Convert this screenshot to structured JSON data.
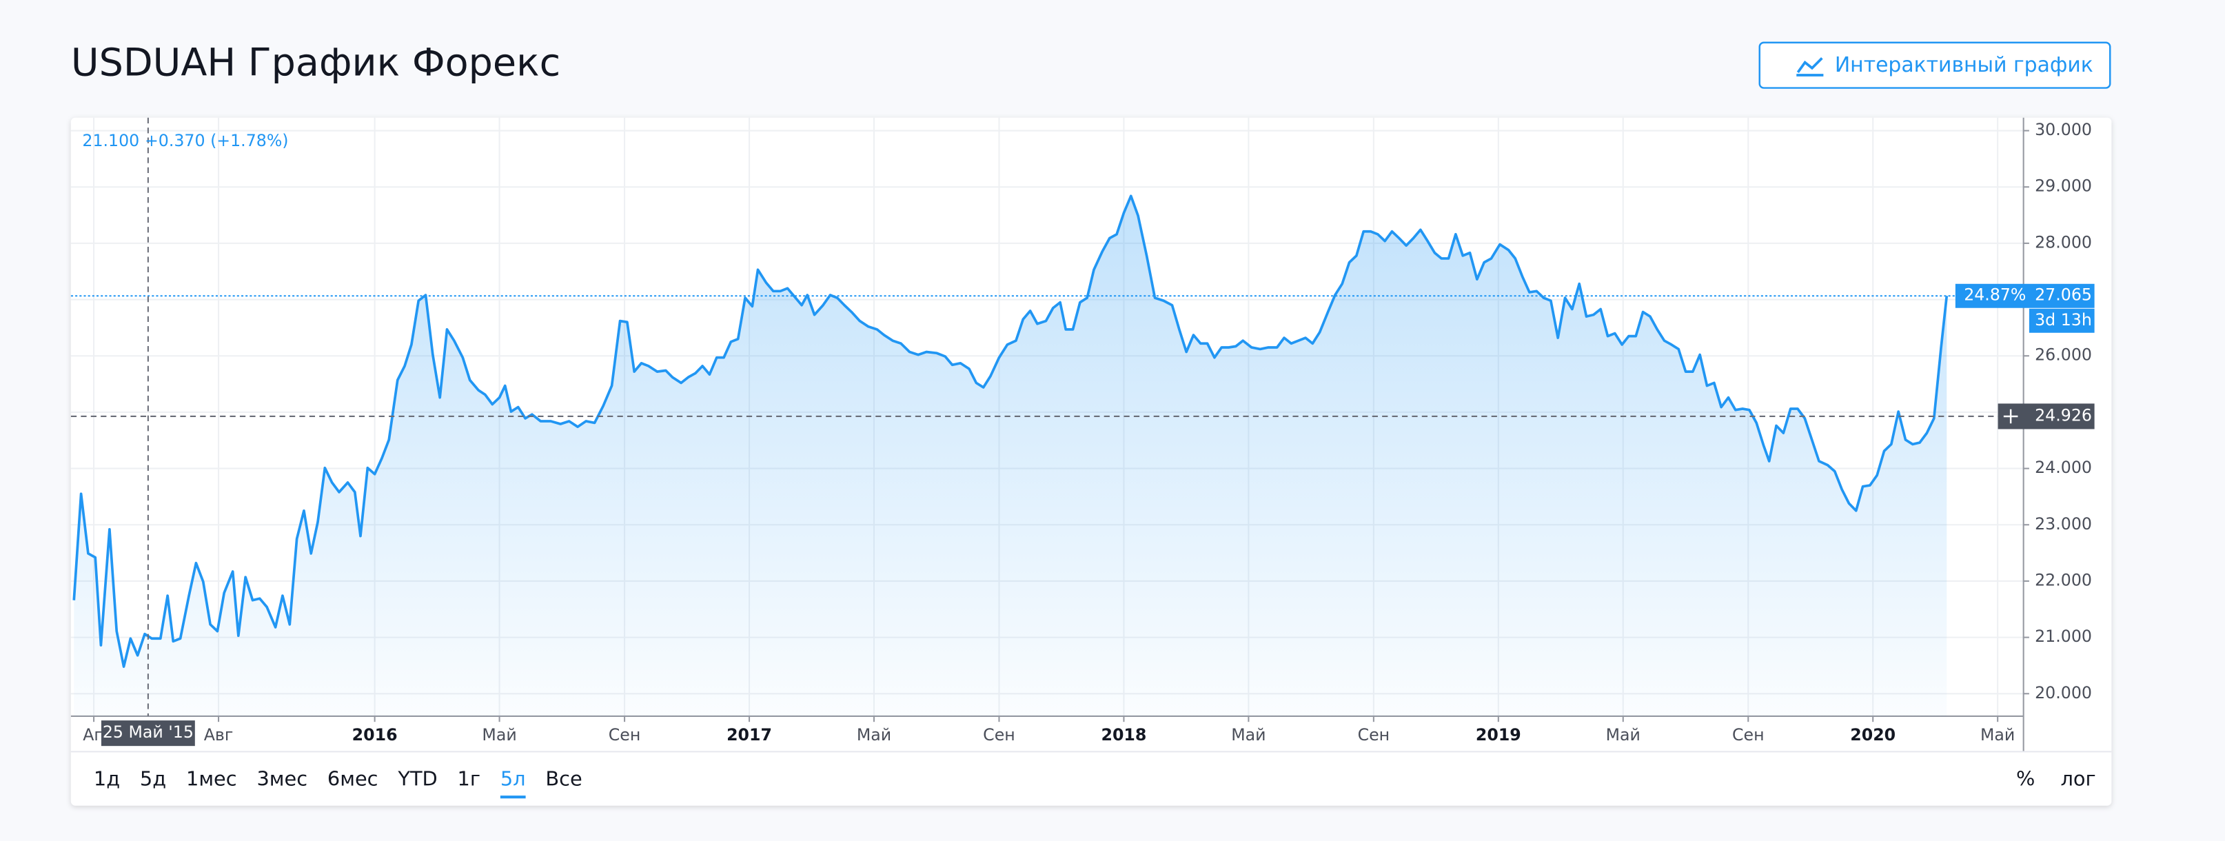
{
  "header": {
    "title": "USDUAH График Форекс",
    "button": "Интерактивный график"
  },
  "chart_data": {
    "type": "line",
    "color": "#2196f3",
    "grid": true,
    "x": [
      2015.197,
      2015.216,
      2015.235,
      2015.254,
      2015.269,
      2015.292,
      2015.311,
      2015.33,
      2015.348,
      2015.367,
      2015.386,
      2015.405,
      2015.428,
      2015.447,
      2015.462,
      2015.481,
      2015.504,
      2015.523,
      2015.542,
      2015.561,
      2015.58,
      2015.598,
      2015.621,
      2015.636,
      2015.655,
      2015.674,
      2015.693,
      2015.712,
      2015.735,
      2015.754,
      2015.773,
      2015.792,
      2015.811,
      2015.83,
      2015.848,
      2015.867,
      2015.886,
      2015.905,
      2015.928,
      2015.947,
      2015.962,
      2015.981,
      2016.0,
      2016.019,
      2016.038,
      2016.061,
      2016.08,
      2016.098,
      2016.117,
      2016.136,
      2016.155,
      2016.174,
      2016.193,
      2016.212,
      2016.235,
      2016.254,
      2016.277,
      2016.295,
      2016.314,
      2016.333,
      2016.348,
      2016.364,
      2016.383,
      2016.402,
      2016.42,
      2016.443,
      2016.47,
      2016.496,
      2016.519,
      2016.542,
      2016.564,
      2016.587,
      2016.61,
      2016.633,
      2016.655,
      2016.674,
      2016.693,
      2016.712,
      2016.731,
      2016.754,
      2016.777,
      2016.795,
      2016.818,
      2016.837,
      2016.856,
      2016.875,
      2016.894,
      2016.913,
      2016.932,
      2016.951,
      2016.97,
      2016.989,
      2017.008,
      2017.023,
      2017.045,
      2017.064,
      2017.083,
      2017.102,
      2017.121,
      2017.14,
      2017.155,
      2017.174,
      2017.197,
      2017.216,
      2017.235,
      2017.254,
      2017.273,
      2017.295,
      2017.318,
      2017.341,
      2017.36,
      2017.383,
      2017.405,
      2017.428,
      2017.451,
      2017.473,
      2017.5,
      2017.523,
      2017.542,
      2017.564,
      2017.587,
      2017.606,
      2017.625,
      2017.644,
      2017.667,
      2017.689,
      2017.712,
      2017.731,
      2017.75,
      2017.769,
      2017.792,
      2017.811,
      2017.83,
      2017.845,
      2017.864,
      2017.883,
      2017.902,
      2017.92,
      2017.943,
      2017.962,
      2017.981,
      2018.0,
      2018.019,
      2018.038,
      2018.061,
      2018.083,
      2018.106,
      2018.129,
      2018.148,
      2018.167,
      2018.186,
      2018.205,
      2018.223,
      2018.242,
      2018.261,
      2018.28,
      2018.299,
      2018.318,
      2018.341,
      2018.364,
      2018.386,
      2018.409,
      2018.428,
      2018.447,
      2018.466,
      2018.485,
      2018.504,
      2018.523,
      2018.545,
      2018.564,
      2018.583,
      2018.602,
      2018.621,
      2018.64,
      2018.659,
      2018.678,
      2018.697,
      2018.716,
      2018.735,
      2018.754,
      2018.773,
      2018.792,
      2018.811,
      2018.83,
      2018.848,
      2018.867,
      2018.886,
      2018.905,
      2018.924,
      2018.943,
      2018.962,
      2018.981,
      2019.004,
      2019.027,
      2019.045,
      2019.064,
      2019.083,
      2019.102,
      2019.121,
      2019.14,
      2019.159,
      2019.178,
      2019.197,
      2019.216,
      2019.235,
      2019.254,
      2019.273,
      2019.292,
      2019.311,
      2019.33,
      2019.348,
      2019.367,
      2019.386,
      2019.405,
      2019.424,
      2019.443,
      2019.462,
      2019.481,
      2019.5,
      2019.519,
      2019.538,
      2019.557,
      2019.576,
      2019.595,
      2019.614,
      2019.633,
      2019.652,
      2019.67,
      2019.689,
      2019.708,
      2019.723,
      2019.742,
      2019.761,
      2019.78,
      2019.799,
      2019.818,
      2019.837,
      2019.856,
      2019.879,
      2019.898,
      2019.917,
      2019.936,
      2019.955,
      2019.973,
      2019.992,
      2020.011,
      2020.03,
      2020.049,
      2020.068,
      2020.087,
      2020.106,
      2020.125,
      2020.144,
      2020.163,
      2020.182,
      2020.197
    ],
    "values": [
      21.66,
      23.55,
      22.49,
      22.42,
      20.86,
      22.92,
      21.11,
      20.48,
      20.98,
      20.68,
      21.06,
      20.98,
      20.98,
      21.74,
      20.93,
      20.98,
      21.74,
      22.32,
      21.99,
      21.23,
      21.11,
      21.79,
      22.17,
      21.03,
      22.07,
      21.66,
      21.69,
      21.54,
      21.18,
      21.74,
      21.23,
      22.75,
      23.25,
      22.49,
      23.05,
      24.01,
      23.75,
      23.58,
      23.75,
      23.58,
      22.8,
      24.01,
      23.9,
      24.18,
      24.51,
      25.57,
      25.82,
      26.2,
      26.98,
      27.08,
      26.02,
      25.26,
      26.47,
      26.27,
      25.97,
      25.57,
      25.39,
      25.31,
      25.14,
      25.26,
      25.47,
      25.01,
      25.09,
      24.89,
      24.96,
      24.84,
      24.84,
      24.79,
      24.84,
      24.74,
      24.84,
      24.81,
      25.11,
      25.47,
      26.62,
      26.6,
      25.72,
      25.87,
      25.82,
      25.72,
      25.74,
      25.62,
      25.52,
      25.62,
      25.69,
      25.82,
      25.67,
      25.97,
      25.97,
      26.25,
      26.3,
      27.03,
      26.88,
      27.53,
      27.3,
      27.15,
      27.15,
      27.2,
      27.05,
      26.9,
      27.08,
      26.73,
      26.9,
      27.08,
      27.03,
      26.9,
      26.78,
      26.62,
      26.52,
      26.47,
      26.37,
      26.27,
      26.22,
      26.07,
      26.02,
      26.07,
      26.05,
      25.99,
      25.84,
      25.87,
      25.77,
      25.52,
      25.44,
      25.64,
      25.97,
      26.2,
      26.27,
      26.65,
      26.8,
      26.57,
      26.62,
      26.85,
      26.95,
      26.47,
      26.47,
      26.95,
      27.03,
      27.53,
      27.86,
      28.09,
      28.16,
      28.54,
      28.84,
      28.49,
      27.78,
      27.03,
      26.98,
      26.9,
      26.47,
      26.07,
      26.37,
      26.22,
      26.22,
      25.97,
      26.15,
      26.15,
      26.17,
      26.27,
      26.15,
      26.12,
      26.15,
      26.15,
      26.32,
      26.22,
      26.27,
      26.32,
      26.22,
      26.42,
      26.78,
      27.08,
      27.28,
      27.66,
      27.78,
      28.21,
      28.21,
      28.16,
      28.04,
      28.21,
      28.09,
      27.96,
      28.09,
      28.24,
      28.04,
      27.83,
      27.73,
      27.73,
      28.16,
      27.78,
      27.83,
      27.36,
      27.66,
      27.73,
      27.98,
      27.88,
      27.73,
      27.41,
      27.13,
      27.15,
      27.03,
      26.98,
      26.32,
      27.03,
      26.83,
      27.28,
      26.7,
      26.73,
      26.83,
      26.35,
      26.4,
      26.2,
      26.35,
      26.35,
      26.78,
      26.7,
      26.47,
      26.27,
      26.2,
      26.12,
      25.72,
      25.72,
      26.02,
      25.47,
      25.52,
      25.09,
      25.26,
      25.04,
      25.06,
      25.04,
      24.81,
      24.41,
      24.13,
      24.76,
      24.63,
      25.06,
      25.06,
      24.89,
      24.51,
      24.13,
      24.06,
      23.95,
      23.63,
      23.38,
      23.25,
      23.68,
      23.7,
      23.88,
      24.31,
      24.43,
      25.01,
      24.51,
      24.43,
      24.46,
      24.63,
      24.89,
      26.15,
      27.065
    ],
    "xlim": [
      2015.189,
      2020.402
    ],
    "ylim": [
      19.6,
      30.23
    ],
    "xticks": [
      {
        "value": 2015.25,
        "label": "Ап"
      },
      {
        "value": 2015.583,
        "label": "Авг"
      },
      2016,
      {
        "value": 2016.333,
        "label": "Май"
      },
      {
        "value": 2016.667,
        "label": "Сен"
      },
      2017,
      {
        "value": 2017.333,
        "label": "Май"
      },
      {
        "value": 2017.667,
        "label": "Сен"
      },
      2018,
      {
        "value": 2018.333,
        "label": "Май"
      },
      {
        "value": 2018.667,
        "label": "Сен"
      },
      2019,
      {
        "value": 2019.333,
        "label": "Май"
      },
      {
        "value": 2019.667,
        "label": "Сен"
      },
      2020,
      {
        "value": 2020.333,
        "label": "Май"
      }
    ],
    "yticks": [
      {
        "value": 20,
        "label": "20.000"
      },
      {
        "value": 21,
        "label": "21.000"
      },
      {
        "value": 22,
        "label": "22.000"
      },
      {
        "value": 23,
        "label": "23.000"
      },
      {
        "value": 24,
        "label": "24.000"
      },
      {
        "value": 25,
        "label": "25.000"
      },
      {
        "value": 26,
        "label": "26.000"
      },
      {
        "value": 27,
        "label": "27.000"
      },
      {
        "value": 28,
        "label": "28.000"
      },
      {
        "value": 29,
        "label": "29.000"
      },
      {
        "value": 30,
        "label": "30.000"
      }
    ],
    "crosshair": {
      "x": 2015.395,
      "date_label": "25 Май '15",
      "value": {
        "value": 21.1,
        "label": "21.100"
      },
      "change": "+0.370 (+1.78%)",
      "y": 24.926
    },
    "last": {
      "value": 27.065,
      "change": "24.87%",
      "countdown": "3d 13h"
    }
  },
  "toolbar": {
    "ranges": [
      "1д",
      "5д",
      "1мес",
      "3мес",
      "6мес",
      "YTD",
      "1г",
      "5л",
      "Все"
    ],
    "active_range": "5л",
    "scales": [
      "%",
      "лог"
    ]
  }
}
